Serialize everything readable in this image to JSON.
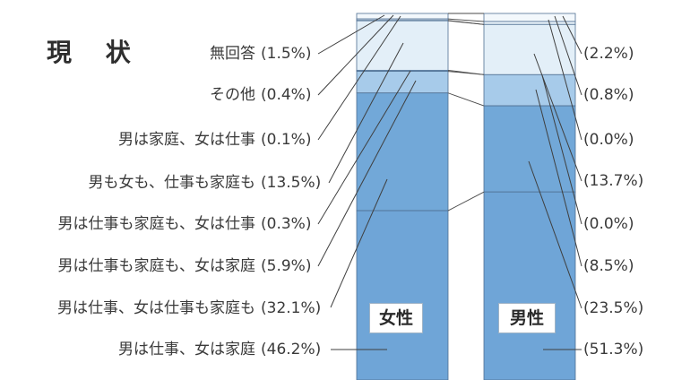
{
  "chart_data": {
    "type": "bar",
    "stacked": true,
    "title": "現 状",
    "categories": [
      "女性",
      "男性"
    ],
    "ylim": [
      0,
      100
    ],
    "series": [
      {
        "name": "無回答",
        "values": [
          1.5,
          2.2
        ],
        "value_labels": [
          "(1.5%)",
          "(2.2%)"
        ],
        "color": "#f3f8fc"
      },
      {
        "name": "その他",
        "values": [
          0.4,
          0.8
        ],
        "value_labels": [
          "(0.4%)",
          "(0.8%)"
        ],
        "color": "#eaf3fa"
      },
      {
        "name": "男は家庭、女は仕事",
        "values": [
          0.1,
          0.0
        ],
        "value_labels": [
          "(0.1%)",
          "(0.0%)"
        ],
        "color": "#e6f1f9"
      },
      {
        "name": "男も女も、仕事も家庭も",
        "values": [
          13.5,
          13.7
        ],
        "value_labels": [
          "(13.5%)",
          "(13.7%)"
        ],
        "color": "#e3eff8"
      },
      {
        "name": "男は仕事も家庭も、女は仕事",
        "values": [
          0.3,
          0.0
        ],
        "value_labels": [
          "(0.3%)",
          "(0.0%)"
        ],
        "color": "#a9cdeb"
      },
      {
        "name": "男は仕事も家庭も、女は家庭",
        "values": [
          5.9,
          8.5
        ],
        "value_labels": [
          "(5.9%)",
          "(8.5%)"
        ],
        "color": "#a7cbea"
      },
      {
        "name": "男は仕事、女は仕事も家庭も",
        "values": [
          32.1,
          23.5
        ],
        "value_labels": [
          "(32.1%)",
          "(23.5%)"
        ],
        "color": "#72a8d8"
      },
      {
        "name": "男は仕事、女は家庭",
        "values": [
          46.2,
          51.3
        ],
        "value_labels": [
          "(46.2%)",
          "(51.3%)"
        ],
        "color": "#6fa5d7"
      }
    ]
  }
}
